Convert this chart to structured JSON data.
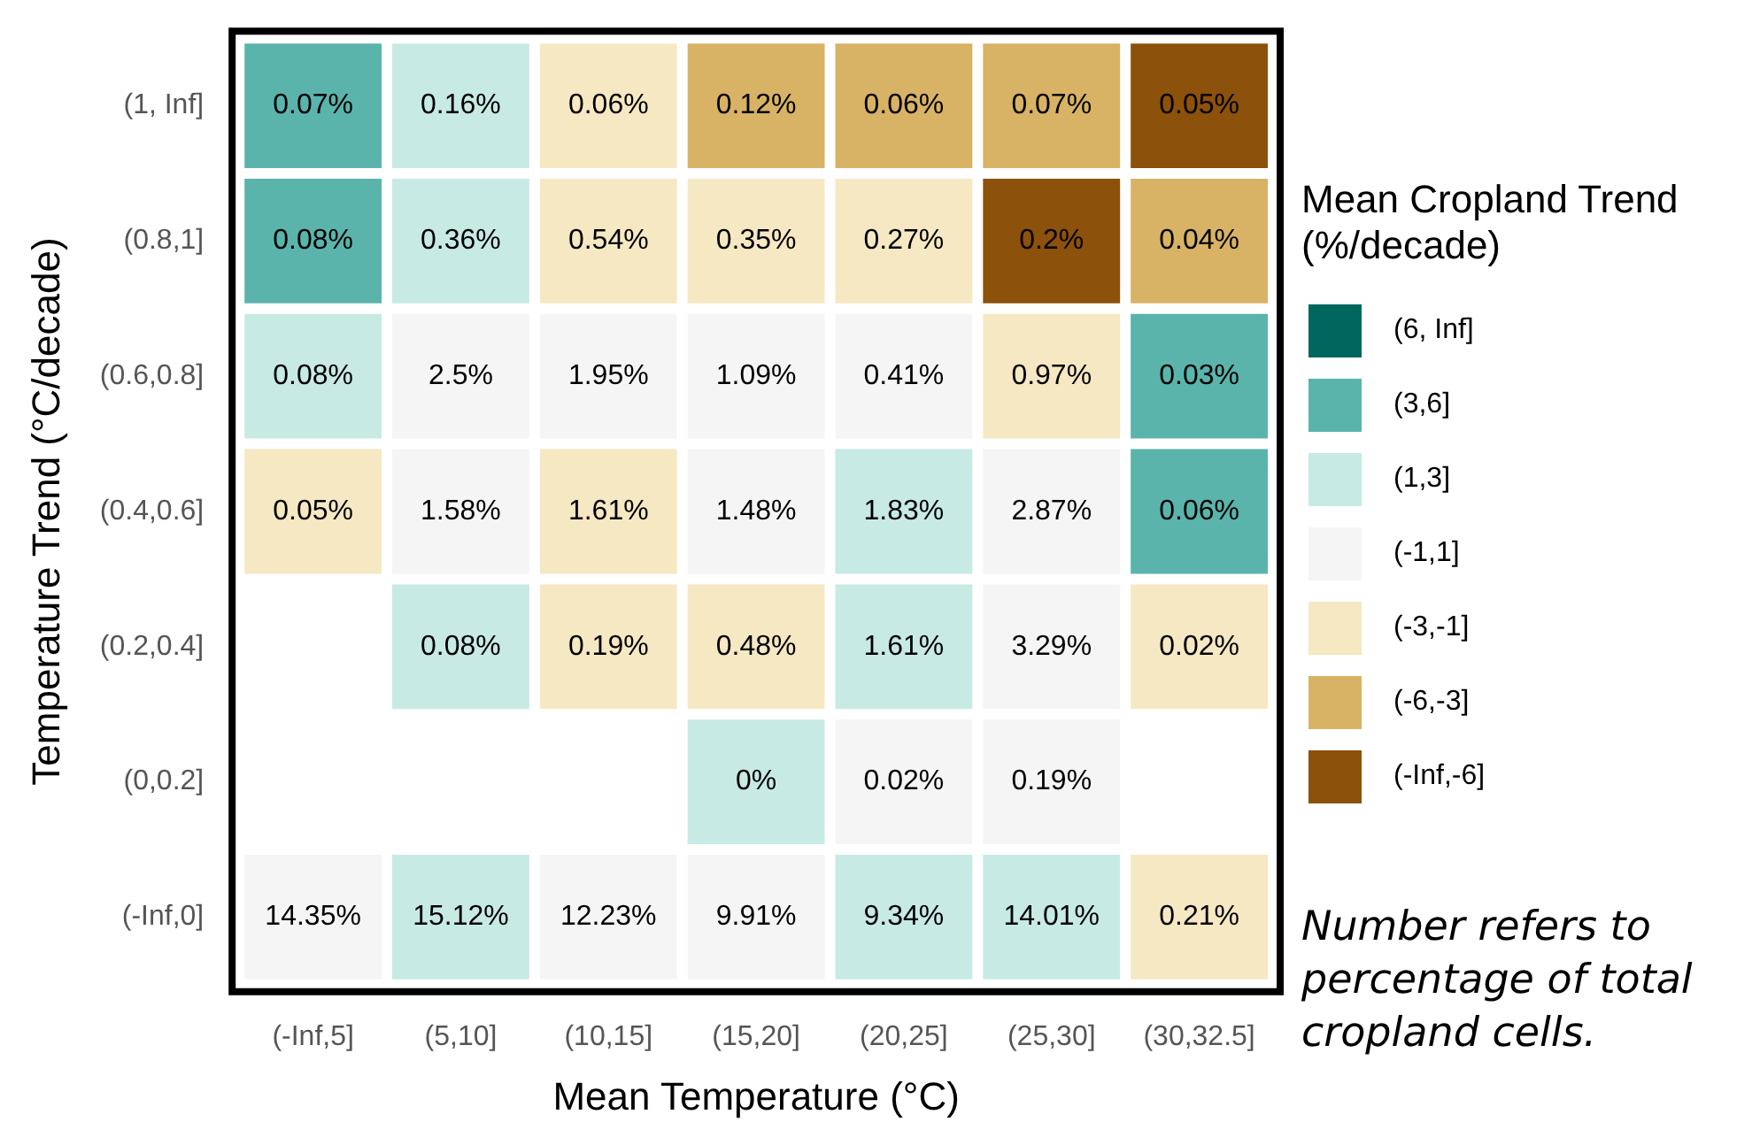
{
  "chart_data": {
    "type": "heatmap",
    "xlabel": "Mean Temperature (°C)",
    "ylabel": "Temperature Trend (°C/decade)",
    "legend_title": "Mean Cropland Trend (%/decade)",
    "legend": "right",
    "annotations": [
      "Number refers to percentage of total cropland cells."
    ],
    "categories": [
      "(-Inf,5]",
      "(5,10]",
      "(10,15]",
      "(15,20]",
      "(20,25]",
      "(25,30]",
      "(30,32.5]"
    ],
    "y_categories": [
      "(1, Inf]",
      "(0.8,1]",
      "(0.6,0.8]",
      "(0.4,0.6]",
      "(0.2,0.4]",
      "(0,0.2]",
      "(-Inf,0]"
    ],
    "series": [
      {
        "name": "(6, Inf]",
        "color": "#01665e",
        "values": [
          null,
          null,
          null,
          null,
          null,
          null,
          null
        ]
      },
      {
        "name": "(3,6]",
        "color": "#5ab4ac",
        "values": [
          null,
          null,
          null,
          null,
          null,
          null,
          null
        ]
      },
      {
        "name": "(1,3]",
        "color": "#c7eae5",
        "values": [
          null,
          null,
          null,
          null,
          null,
          null,
          null
        ]
      },
      {
        "name": "(-1,1]",
        "color": "#f5f5f5",
        "values": [
          null,
          null,
          null,
          null,
          null,
          null,
          null
        ]
      },
      {
        "name": "(-3,-1]",
        "color": "#f6e8c3",
        "values": [
          null,
          null,
          null,
          null,
          null,
          null,
          null
        ]
      },
      {
        "name": "(-6,-3]",
        "color": "#d8b365",
        "values": [
          null,
          null,
          null,
          null,
          null,
          null,
          null
        ]
      },
      {
        "name": "(-Inf,-6]",
        "color": "#8c510a",
        "values": [
          null,
          null,
          null,
          null,
          null,
          null,
          null
        ]
      }
    ],
    "cells": [
      [
        0.07,
        0.16,
        0.06,
        0.12,
        0.06,
        0.07,
        0.05
      ],
      [
        0.08,
        0.36,
        0.54,
        0.35,
        0.27,
        0.2,
        0.04
      ],
      [
        0.08,
        2.5,
        1.95,
        1.09,
        0.41,
        0.97,
        0.03
      ],
      [
        0.05,
        1.58,
        1.61,
        1.48,
        1.83,
        2.87,
        0.06
      ],
      [
        null,
        0.08,
        0.19,
        0.48,
        1.61,
        3.29,
        0.02
      ],
      [
        null,
        null,
        null,
        0,
        0.02,
        0.19,
        null
      ],
      [
        14.35,
        15.12,
        12.23,
        9.91,
        9.34,
        14.01,
        0.21
      ]
    ],
    "cell_labels": [
      [
        "0.07%",
        "0.16%",
        "0.06%",
        "0.12%",
        "0.06%",
        "0.07%",
        "0.05%"
      ],
      [
        "0.08%",
        "0.36%",
        "0.54%",
        "0.35%",
        "0.27%",
        "0.2%",
        "0.04%"
      ],
      [
        "0.08%",
        "2.5%",
        "1.95%",
        "1.09%",
        "0.41%",
        "0.97%",
        "0.03%"
      ],
      [
        "0.05%",
        "1.58%",
        "1.61%",
        "1.48%",
        "1.83%",
        "2.87%",
        "0.06%"
      ],
      [
        null,
        "0.08%",
        "0.19%",
        "0.48%",
        "1.61%",
        "3.29%",
        "0.02%"
      ],
      [
        null,
        null,
        null,
        "0%",
        "0.02%",
        "0.19%",
        null
      ],
      [
        "14.35%",
        "15.12%",
        "12.23%",
        "9.91%",
        "9.34%",
        "14.01%",
        "0.21%"
      ]
    ],
    "colors": [
      [
        "#5ab4ac",
        "#c7eae5",
        "#f6e8c3",
        "#d8b365",
        "#d8b365",
        "#d8b365",
        "#8c510a"
      ],
      [
        "#5ab4ac",
        "#c7eae5",
        "#f6e8c3",
        "#f6e8c3",
        "#f6e8c3",
        "#8c510a",
        "#d8b365"
      ],
      [
        "#c7eae5",
        "#f5f5f5",
        "#f5f5f5",
        "#f5f5f5",
        "#f5f5f5",
        "#f6e8c3",
        "#5ab4ac"
      ],
      [
        "#f6e8c3",
        "#f5f5f5",
        "#f6e8c3",
        "#f5f5f5",
        "#c7eae5",
        "#f5f5f5",
        "#5ab4ac"
      ],
      [
        null,
        "#c7eae5",
        "#f6e8c3",
        "#f6e8c3",
        "#c7eae5",
        "#f5f5f5",
        "#f6e8c3"
      ],
      [
        null,
        null,
        null,
        "#c7eae5",
        "#f5f5f5",
        "#f5f5f5",
        null
      ],
      [
        "#f5f5f5",
        "#c7eae5",
        "#f5f5f5",
        "#f5f5f5",
        "#c7eae5",
        "#c7eae5",
        "#f6e8c3"
      ]
    ]
  }
}
